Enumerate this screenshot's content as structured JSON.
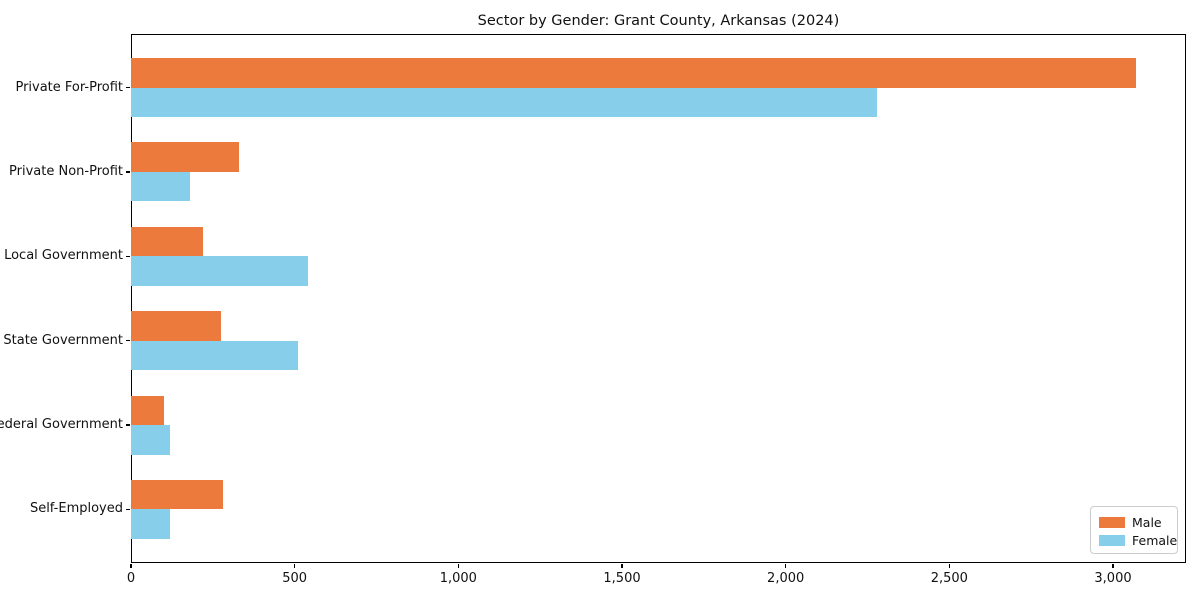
{
  "chart_data": {
    "type": "bar",
    "orientation": "horizontal",
    "title": "Sector by Gender: Grant County, Arkansas (2024)",
    "categories": [
      "Private For-Profit",
      "Private Non-Profit",
      "Local Government",
      "State Government",
      "Federal Government",
      "Self-Employed"
    ],
    "series": [
      {
        "name": "Male",
        "color": "#ec7a3c",
        "values": [
          3070,
          330,
          220,
          275,
          100,
          280
        ]
      },
      {
        "name": "Female",
        "color": "#87ceeb",
        "values": [
          2280,
          180,
          540,
          510,
          120,
          120
        ]
      }
    ],
    "xlim": [
      0,
      3223
    ],
    "xticks": [
      0,
      500,
      1000,
      1500,
      2000,
      2500,
      3000
    ],
    "xtick_labels": [
      "0",
      "500",
      "1,000",
      "1,500",
      "2,000",
      "2,500",
      "3,000"
    ],
    "xlabel": "",
    "ylabel": "",
    "grid": false,
    "legend_position": "lower right"
  }
}
